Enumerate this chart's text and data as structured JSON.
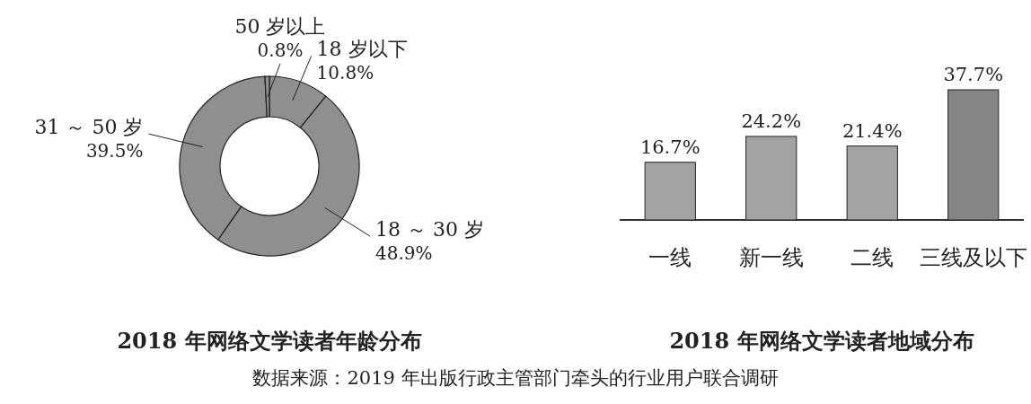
{
  "chart_data": [
    {
      "type": "donut",
      "title": "2018 年网络文学读者年龄分布",
      "categories": [
        "18 岁以下",
        "18 ～ 30 岁",
        "31 ～ 50 岁",
        "50 岁以上"
      ],
      "values": [
        10.8,
        48.9,
        39.5,
        0.8
      ],
      "value_labels": [
        "10.8%",
        "48.9%",
        "39.5%",
        "0.8%"
      ],
      "colors": [
        "#8f8f8f",
        "#8f8f8f",
        "#8f8f8f",
        "#8f8f8f"
      ],
      "annotations": [
        "数据来源：2019 年出版行政主管部门牵头的行业用户联合调研"
      ]
    },
    {
      "type": "bar",
      "title": "2018 年网络文学读者地域分布",
      "categories": [
        "一线",
        "新一线",
        "二线",
        "三线及以下"
      ],
      "values": [
        16.7,
        24.2,
        21.4,
        37.7
      ],
      "value_labels": [
        "16.7%",
        "24.2%",
        "21.4%",
        "37.7%"
      ],
      "colors": [
        "#a3a3a3",
        "#a3a3a3",
        "#a3a3a3",
        "#858585"
      ]
    }
  ]
}
